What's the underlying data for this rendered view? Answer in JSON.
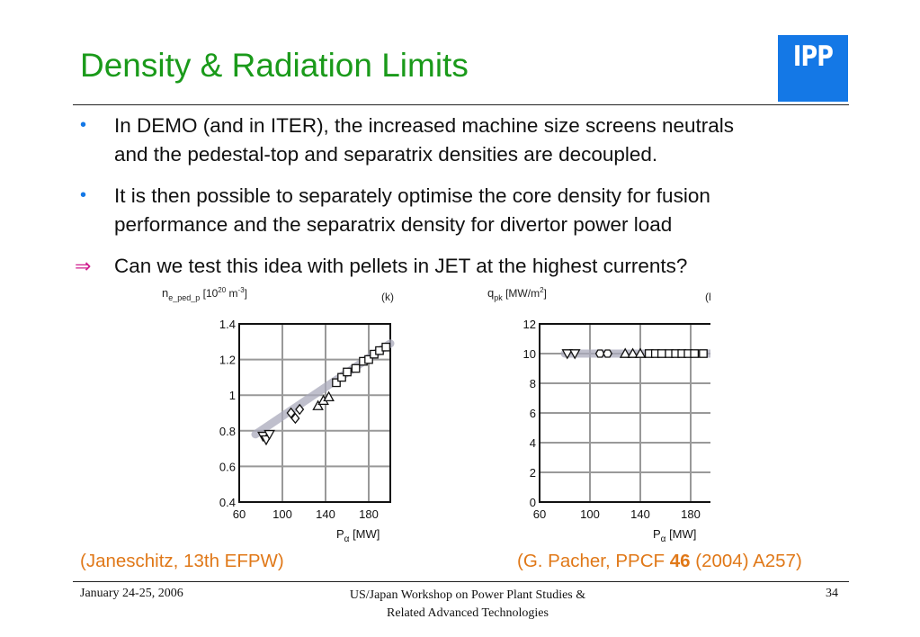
{
  "slide": {
    "title": "Density & Radiation Limits",
    "logo_text": "IPP",
    "bullets": [
      {
        "marker": "•",
        "lines": [
          "In DEMO (and in ITER), the increased machine size screens neutrals",
          "and the pedestal-top and separatrix densities are decoupled."
        ]
      },
      {
        "marker": "•",
        "lines": [
          "It is then possible to separately optimise the core density for fusion",
          "performance and the separatrix density for divertor power load"
        ]
      },
      {
        "marker": "⇒",
        "lines": [
          "Can we test this idea with pellets in JET at the highest currents?"
        ]
      }
    ],
    "citations": {
      "left": "(Janeschitz, 13th EFPW)",
      "right_pre": "(G. Pacher, PPCF ",
      "right_bold": "46",
      "right_post": " (2004) A257)"
    },
    "footer": {
      "date": "January 24-25, 2006",
      "center_line1": "US/Japan Workshop on Power Plant Studies &",
      "center_line2": "Related Advanced Technologies",
      "page": "34"
    },
    "colors": {
      "title": "#1a9a1a",
      "bullet": "#1478e6",
      "arrow": "#d02090",
      "citation": "#e07818",
      "logo": "#1478e6"
    }
  },
  "chart_data": [
    {
      "type": "scatter",
      "ylabel_main": "n",
      "ylabel_sub": "e_ped_p",
      "ylabel_units": "[10",
      "ylabel_exp": "20",
      "ylabel_units2": " m",
      "ylabel_exp2": "-3",
      "ylabel_close": "]",
      "panel_label": "(k)",
      "xlabel_main": "P",
      "xlabel_sub": "α",
      "xlabel_units": " [MW]",
      "xlim": [
        60,
        200
      ],
      "ylim": [
        0.4,
        1.4
      ],
      "xticks": [
        60,
        100,
        140,
        180
      ],
      "yticks": [
        0.4,
        0.6,
        0.8,
        1,
        1.2,
        1.4
      ],
      "grid": true,
      "band": {
        "x": [
          75,
          205
        ],
        "y": [
          0.78,
          1.29
        ]
      },
      "series": [
        {
          "marker": "triangle-down",
          "x": [
            82,
            85,
            88
          ],
          "y": [
            0.77,
            0.75,
            0.78
          ]
        },
        {
          "marker": "diamond",
          "x": [
            108,
            112,
            116
          ],
          "y": [
            0.9,
            0.87,
            0.92
          ]
        },
        {
          "marker": "triangle",
          "x": [
            133,
            138,
            143
          ],
          "y": [
            0.94,
            0.97,
            0.99
          ]
        },
        {
          "marker": "square",
          "x": [
            150,
            155,
            160,
            168,
            175,
            180,
            185,
            190,
            196
          ],
          "y": [
            1.07,
            1.1,
            1.13,
            1.15,
            1.19,
            1.2,
            1.23,
            1.25,
            1.27
          ]
        }
      ]
    },
    {
      "type": "scatter",
      "ylabel_main": "q",
      "ylabel_sub": "pk",
      "ylabel_units": " [MW/m",
      "ylabel_exp": "2",
      "ylabel_close": "]",
      "panel_label": "(h)",
      "xlabel_main": "P",
      "xlabel_sub": "α",
      "xlabel_units": " [MW]",
      "xlim": [
        60,
        200
      ],
      "ylim": [
        0,
        12
      ],
      "xticks": [
        60,
        100,
        140,
        180
      ],
      "yticks": [
        0,
        2,
        4,
        6,
        8,
        10,
        12
      ],
      "grid": true,
      "band": {
        "x": [
          80,
          200
        ],
        "y": [
          10,
          10
        ]
      },
      "series": [
        {
          "marker": "triangle-down",
          "x": [
            82,
            88
          ],
          "y": [
            10,
            10
          ]
        },
        {
          "marker": "hexagon",
          "x": [
            108,
            114
          ],
          "y": [
            10,
            10
          ]
        },
        {
          "marker": "triangle",
          "x": [
            128,
            134,
            140
          ],
          "y": [
            10,
            10,
            10
          ]
        },
        {
          "marker": "square",
          "x": [
            147,
            152,
            157,
            163,
            168,
            173,
            178,
            183,
            190
          ],
          "y": [
            10,
            10,
            10,
            10,
            10,
            10,
            10,
            10,
            10
          ]
        }
      ]
    }
  ]
}
